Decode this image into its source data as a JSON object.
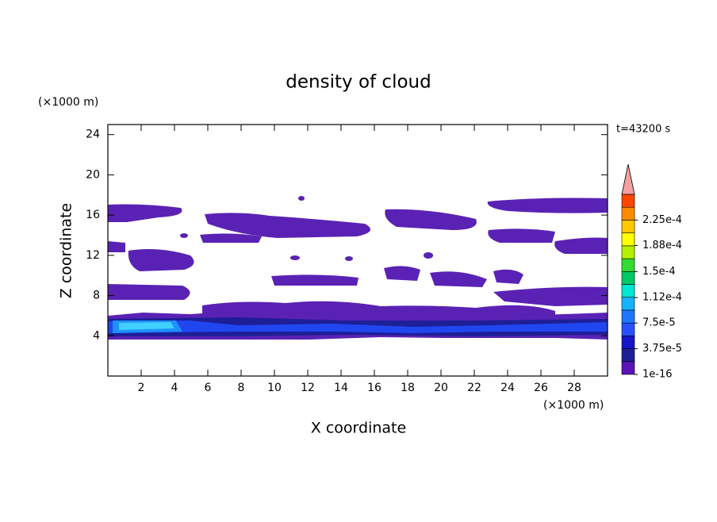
{
  "chart_data": {
    "type": "contour",
    "title": "density of cloud",
    "x_label": "X coordinate",
    "y_label": "Z coordinate",
    "x_unit": "(×1000 m)",
    "y_unit": "(×1000 m)",
    "annotation": "t=43200 s",
    "xlim": [
      0,
      30
    ],
    "ylim": [
      0,
      25
    ],
    "xticks": [
      2,
      4,
      6,
      8,
      10,
      12,
      14,
      16,
      18,
      20,
      22,
      24,
      26,
      28
    ],
    "yticks": [
      4,
      8,
      12,
      16,
      20,
      24
    ],
    "colorbar": {
      "clim": [
        0,
        0.0002625
      ],
      "ticks": [
        1e-16,
        {
          "value": 3.75e-05,
          "label": "3.75e-5"
        },
        {
          "value": 7.5e-05,
          "label": "7.5e-5"
        },
        {
          "value": 0.000112,
          "label": "1.12e-4"
        },
        {
          "value": 0.00015,
          "label": "1.5e-4"
        },
        {
          "value": 0.000188,
          "label": "1.88e-4"
        },
        {
          "value": 0.000225,
          "label": "2.25e-4"
        }
      ],
      "colors": [
        "#5a14b4",
        "#1e1e96",
        "#1414c8",
        "#2850ff",
        "#1e78ff",
        "#14b4ff",
        "#00e6d2",
        "#00c864",
        "#32dc32",
        "#b4f000",
        "#ffff00",
        "#ffc800",
        "#ff8c00",
        "#ff4600"
      ],
      "extend_color": "#f4a0a0"
    }
  }
}
